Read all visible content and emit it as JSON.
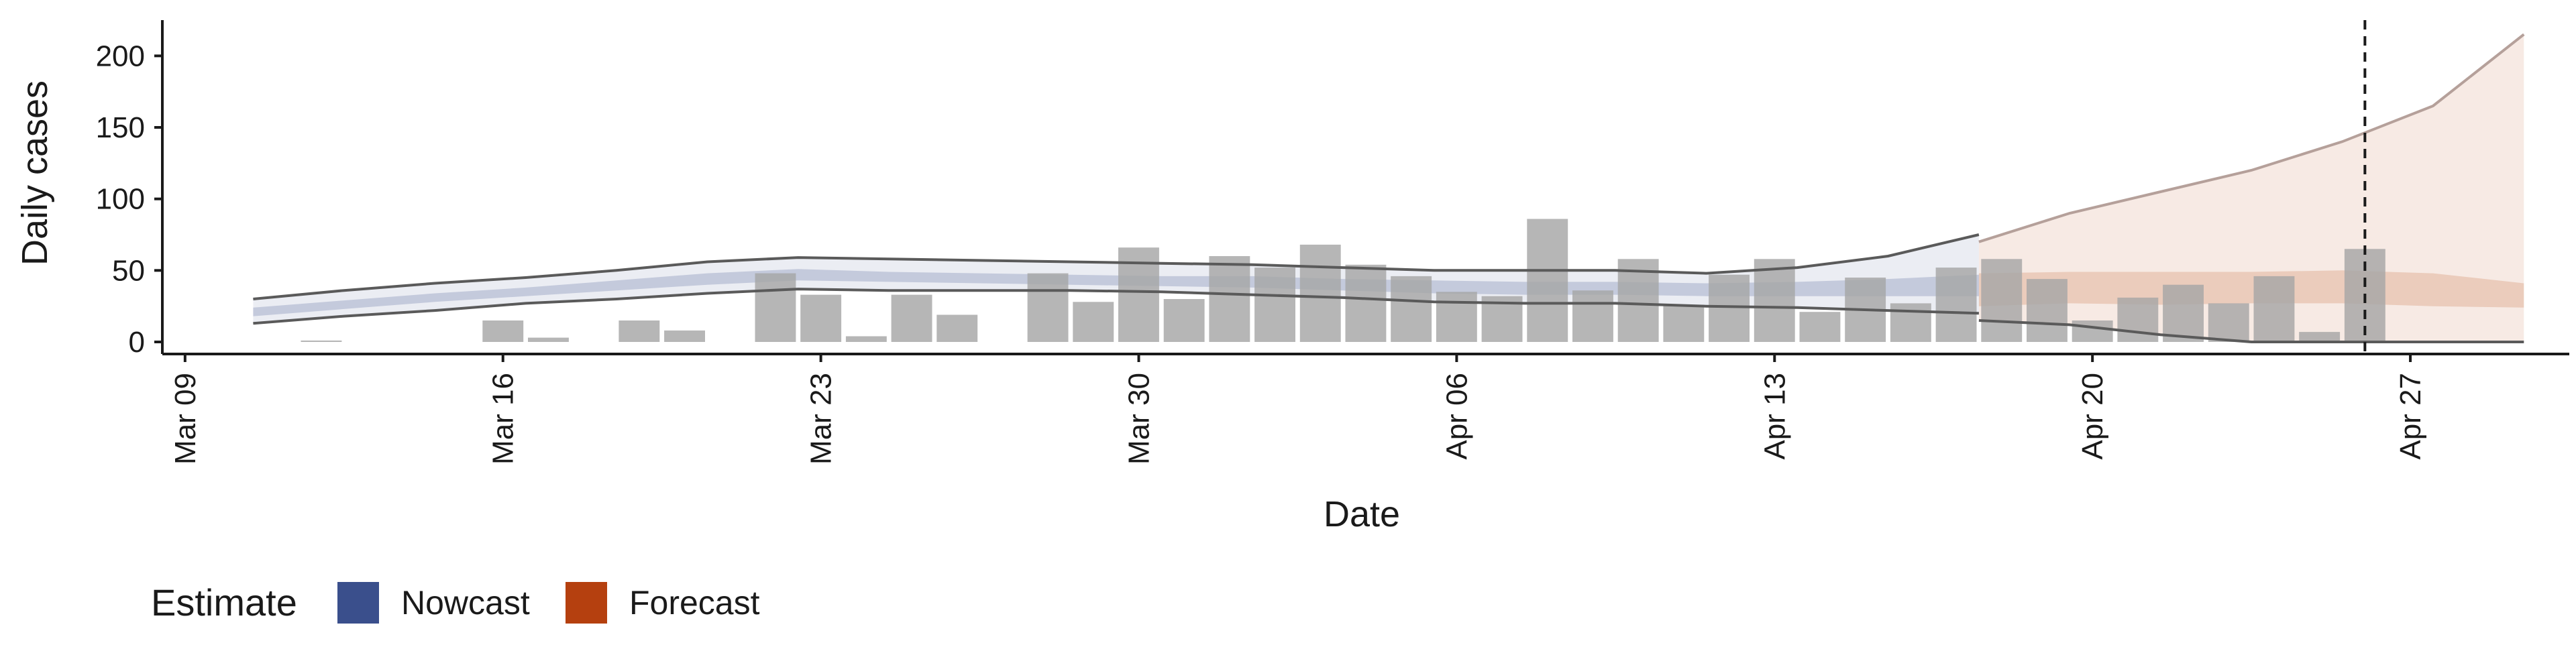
{
  "chart_data": {
    "type": "bar",
    "xlabel": "Date",
    "ylabel": "Daily cases",
    "xlim": [
      "2020-03-09",
      "2020-05-01"
    ],
    "ylim": [
      0,
      225
    ],
    "y_ticks": [
      0,
      50,
      100,
      150,
      200
    ],
    "x_ticks": [
      {
        "date": "2020-03-09",
        "label": "Mar 09"
      },
      {
        "date": "2020-03-16",
        "label": "Mar 16"
      },
      {
        "date": "2020-03-23",
        "label": "Mar 23"
      },
      {
        "date": "2020-03-30",
        "label": "Mar 30"
      },
      {
        "date": "2020-04-06",
        "label": "Apr 06"
      },
      {
        "date": "2020-04-13",
        "label": "Apr 13"
      },
      {
        "date": "2020-04-20",
        "label": "Apr 20"
      },
      {
        "date": "2020-04-27",
        "label": "Apr 27"
      }
    ],
    "grid": false,
    "legend": {
      "title": "Estimate",
      "position": "bottom-left",
      "entries": [
        {
          "label": "Nowcast",
          "color": "#3a4f8c"
        },
        {
          "label": "Forecast",
          "color": "#b5400f"
        }
      ]
    },
    "colors": {
      "bars": "#a6a6a6",
      "nowcast_band": "#3a4f8c",
      "forecast_band": "#c0541e",
      "bound_line": "#5a5a5a",
      "forecast_line": "#b5a09a",
      "reference_line": "#1a1a1a"
    },
    "reference_date": "2020-04-26",
    "bars": [
      {
        "date": "2020-03-12",
        "value": 1
      },
      {
        "date": "2020-03-16",
        "value": 15
      },
      {
        "date": "2020-03-17",
        "value": 3
      },
      {
        "date": "2020-03-19",
        "value": 15
      },
      {
        "date": "2020-03-20",
        "value": 8
      },
      {
        "date": "2020-03-22",
        "value": 48
      },
      {
        "date": "2020-03-23",
        "value": 33
      },
      {
        "date": "2020-03-24",
        "value": 4
      },
      {
        "date": "2020-03-25",
        "value": 33
      },
      {
        "date": "2020-03-26",
        "value": 19
      },
      {
        "date": "2020-03-28",
        "value": 48
      },
      {
        "date": "2020-03-29",
        "value": 28
      },
      {
        "date": "2020-03-30",
        "value": 66
      },
      {
        "date": "2020-03-31",
        "value": 30
      },
      {
        "date": "2020-04-01",
        "value": 60
      },
      {
        "date": "2020-04-02",
        "value": 52
      },
      {
        "date": "2020-04-03",
        "value": 68
      },
      {
        "date": "2020-04-04",
        "value": 54
      },
      {
        "date": "2020-04-05",
        "value": 46
      },
      {
        "date": "2020-04-06",
        "value": 35
      },
      {
        "date": "2020-04-07",
        "value": 32
      },
      {
        "date": "2020-04-08",
        "value": 86
      },
      {
        "date": "2020-04-09",
        "value": 36
      },
      {
        "date": "2020-04-10",
        "value": 58
      },
      {
        "date": "2020-04-11",
        "value": 26
      },
      {
        "date": "2020-04-12",
        "value": 47
      },
      {
        "date": "2020-04-13",
        "value": 58
      },
      {
        "date": "2020-04-14",
        "value": 21
      },
      {
        "date": "2020-04-15",
        "value": 45
      },
      {
        "date": "2020-04-16",
        "value": 27
      },
      {
        "date": "2020-04-17",
        "value": 52
      },
      {
        "date": "2020-04-18",
        "value": 58
      },
      {
        "date": "2020-04-19",
        "value": 44
      },
      {
        "date": "2020-04-20",
        "value": 15
      },
      {
        "date": "2020-04-21",
        "value": 31
      },
      {
        "date": "2020-04-22",
        "value": 40
      },
      {
        "date": "2020-04-23",
        "value": 27
      },
      {
        "date": "2020-04-24",
        "value": 46
      },
      {
        "date": "2020-04-25",
        "value": 7
      },
      {
        "date": "2020-04-26",
        "value": 65
      }
    ],
    "nowcast": {
      "dates": [
        "2020-03-11",
        "2020-03-13",
        "2020-03-15",
        "2020-03-17",
        "2020-03-19",
        "2020-03-21",
        "2020-03-23",
        "2020-03-25",
        "2020-03-27",
        "2020-03-29",
        "2020-03-31",
        "2020-04-02",
        "2020-04-04",
        "2020-04-06",
        "2020-04-08",
        "2020-04-10",
        "2020-04-12",
        "2020-04-14",
        "2020-04-16",
        "2020-04-18"
      ],
      "lower_90": [
        13,
        18,
        22,
        27,
        30,
        34,
        37,
        36,
        36,
        36,
        35,
        33,
        31,
        28,
        27,
        27,
        25,
        24,
        22,
        20
      ],
      "upper_90": [
        30,
        36,
        41,
        45,
        50,
        56,
        59,
        58,
        57,
        56,
        55,
        54,
        52,
        50,
        50,
        50,
        48,
        52,
        60,
        75
      ],
      "lower_50": [
        18,
        23,
        28,
        32,
        36,
        40,
        43,
        42,
        41,
        40,
        39,
        38,
        36,
        34,
        33,
        33,
        32,
        32,
        32,
        32
      ],
      "upper_50": [
        24,
        29,
        34,
        38,
        43,
        48,
        51,
        49,
        48,
        47,
        46,
        46,
        44,
        43,
        42,
        42,
        41,
        42,
        44,
        47
      ]
    },
    "forecast": {
      "dates": [
        "2020-04-18",
        "2020-04-20",
        "2020-04-22",
        "2020-04-24",
        "2020-04-26",
        "2020-04-28",
        "2020-04-30"
      ],
      "lower_90": [
        15,
        12,
        5,
        0,
        0,
        0,
        0
      ],
      "upper_90": [
        70,
        90,
        105,
        120,
        140,
        165,
        215
      ],
      "lower_50": [
        25,
        27,
        26,
        27,
        27,
        25,
        24
      ],
      "upper_50": [
        48,
        49,
        49,
        49,
        50,
        48,
        41
      ]
    }
  }
}
